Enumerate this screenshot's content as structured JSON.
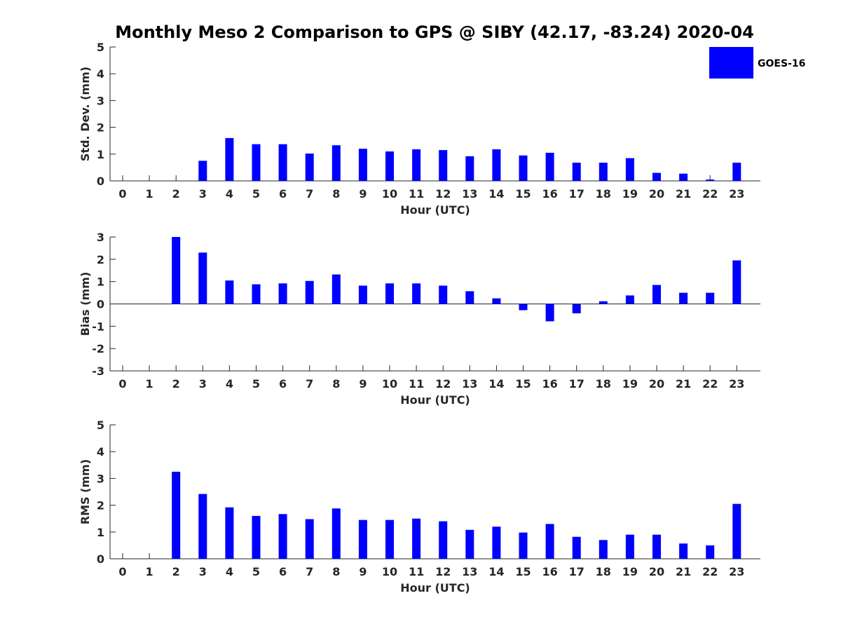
{
  "chart_data": {
    "type": "bar",
    "title": "Monthly Meso 2 Comparison to GPS @ SIBY (42.17, -83.24) 2020-04",
    "legend": {
      "label": "GOES-16",
      "position": "top-right"
    },
    "bar_color": "#0000ff",
    "grid": false,
    "panels": [
      {
        "ylabel": "Std. Dev. (mm)",
        "xlabel": "Hour (UTC)",
        "ylim": [
          0,
          5
        ],
        "yticks": [
          0,
          1,
          2,
          3,
          4,
          5
        ],
        "categories": [
          0,
          1,
          2,
          3,
          4,
          5,
          6,
          7,
          8,
          9,
          10,
          11,
          12,
          13,
          14,
          15,
          16,
          17,
          18,
          19,
          20,
          21,
          22,
          23
        ],
        "values": [
          null,
          null,
          null,
          0.75,
          1.6,
          1.37,
          1.37,
          1.02,
          1.33,
          1.2,
          1.1,
          1.18,
          1.15,
          0.92,
          1.18,
          0.95,
          1.05,
          0.68,
          0.68,
          0.85,
          0.3,
          0.27,
          0.05,
          0.68
        ]
      },
      {
        "ylabel": "Bias (mm)",
        "xlabel": "Hour (UTC)",
        "ylim": [
          -3,
          3
        ],
        "yticks": [
          -3,
          -2,
          -1,
          0,
          1,
          2,
          3
        ],
        "categories": [
          0,
          1,
          2,
          3,
          4,
          5,
          6,
          7,
          8,
          9,
          10,
          11,
          12,
          13,
          14,
          15,
          16,
          17,
          18,
          19,
          20,
          21,
          22,
          23
        ],
        "values": [
          null,
          null,
          3.0,
          2.3,
          1.05,
          0.88,
          0.92,
          1.03,
          1.32,
          0.82,
          0.92,
          0.92,
          0.82,
          0.57,
          0.25,
          -0.28,
          -0.78,
          -0.42,
          0.12,
          0.38,
          0.85,
          0.5,
          0.5,
          1.95
        ]
      },
      {
        "ylabel": "RMS (mm)",
        "xlabel": "Hour (UTC)",
        "ylim": [
          0,
          5
        ],
        "yticks": [
          0,
          1,
          2,
          3,
          4,
          5
        ],
        "categories": [
          0,
          1,
          2,
          3,
          4,
          5,
          6,
          7,
          8,
          9,
          10,
          11,
          12,
          13,
          14,
          15,
          16,
          17,
          18,
          19,
          20,
          21,
          22,
          23
        ],
        "values": [
          null,
          null,
          3.25,
          2.42,
          1.92,
          1.6,
          1.67,
          1.48,
          1.88,
          1.45,
          1.45,
          1.5,
          1.4,
          1.08,
          1.2,
          0.98,
          1.3,
          0.82,
          0.7,
          0.9,
          0.9,
          0.57,
          0.5,
          2.05
        ]
      }
    ]
  }
}
